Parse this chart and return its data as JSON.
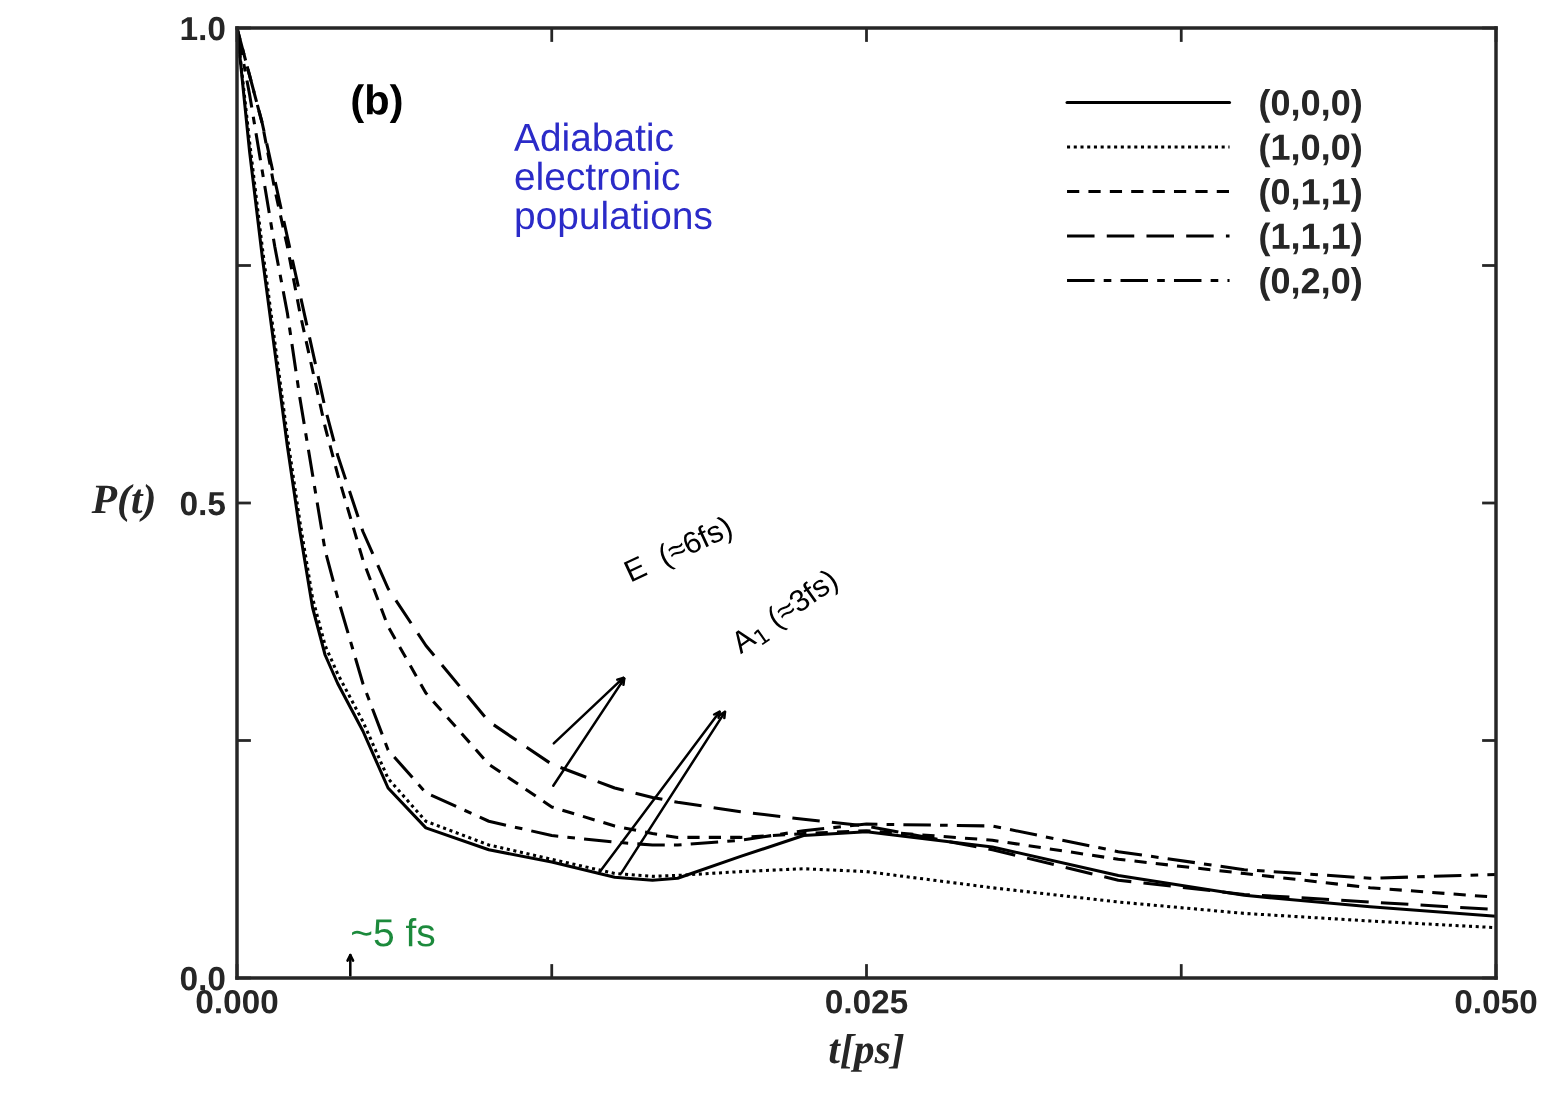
{
  "chart_data": {
    "type": "line",
    "xlabel": "t[ps]",
    "ylabel": "P(t)",
    "x": [
      0,
      0.0005,
      0.001,
      0.0015,
      0.002,
      0.0025,
      0.003,
      0.0035,
      0.004,
      0.005,
      0.006,
      0.0075,
      0.01,
      0.0125,
      0.015,
      0.0165,
      0.0175,
      0.02,
      0.0225,
      0.025,
      0.03,
      0.035,
      0.04,
      0.045,
      0.05
    ],
    "series": [
      {
        "name": "(0,0,0)",
        "color": "#000000",
        "line_style": "solid",
        "values": [
          1.0,
          0.87,
          0.76,
          0.66,
          0.56,
          0.47,
          0.39,
          0.34,
          0.31,
          0.26,
          0.2,
          0.158,
          0.135,
          0.122,
          0.106,
          0.103,
          0.105,
          0.128,
          0.15,
          0.154,
          0.138,
          0.108,
          0.087,
          0.075,
          0.065
        ]
      },
      {
        "name": "(1,0,0)",
        "color": "#000000",
        "line_style": "dotted",
        "values": [
          1.0,
          0.88,
          0.77,
          0.67,
          0.57,
          0.48,
          0.4,
          0.35,
          0.32,
          0.27,
          0.21,
          0.165,
          0.14,
          0.125,
          0.11,
          0.107,
          0.108,
          0.112,
          0.115,
          0.112,
          0.095,
          0.08,
          0.068,
          0.06,
          0.053
        ]
      },
      {
        "name": "(0,1,1)",
        "color": "#000000",
        "line_style": "dashed",
        "values": [
          1.0,
          0.95,
          0.9,
          0.83,
          0.77,
          0.7,
          0.64,
          0.58,
          0.53,
          0.44,
          0.37,
          0.3,
          0.225,
          0.18,
          0.16,
          0.152,
          0.148,
          0.148,
          0.152,
          0.155,
          0.145,
          0.125,
          0.11,
          0.095,
          0.085
        ]
      },
      {
        "name": "(1,1,1)",
        "color": "#000000",
        "line_style": "long dashed",
        "values": [
          1.0,
          0.95,
          0.9,
          0.84,
          0.78,
          0.72,
          0.66,
          0.6,
          0.55,
          0.47,
          0.41,
          0.35,
          0.27,
          0.225,
          0.2,
          0.19,
          0.185,
          0.175,
          0.167,
          0.16,
          0.135,
          0.103,
          0.088,
          0.08,
          0.072
        ]
      },
      {
        "name": "(0,2,0)",
        "color": "#000000",
        "line_style": "dashdot",
        "values": [
          1.0,
          0.93,
          0.85,
          0.77,
          0.7,
          0.61,
          0.53,
          0.45,
          0.4,
          0.31,
          0.24,
          0.195,
          0.165,
          0.15,
          0.143,
          0.14,
          0.14,
          0.145,
          0.155,
          0.162,
          0.16,
          0.133,
          0.114,
          0.105,
          0.109
        ]
      }
    ],
    "xlim": [
      0,
      0.05
    ],
    "ylim": [
      0,
      1.0
    ],
    "xticks": [
      {
        "value": 0,
        "label": "0.000"
      },
      {
        "value": 0.0125,
        "label": null
      },
      {
        "value": 0.025,
        "label": "0.025"
      },
      {
        "value": 0.0375,
        "label": null
      },
      {
        "value": 0.05,
        "label": "0.050"
      }
    ],
    "yticks": [
      {
        "value": 0,
        "label": "0.0"
      },
      {
        "value": 0.25,
        "label": null
      },
      {
        "value": 0.5,
        "label": "0.5"
      },
      {
        "value": 0.75,
        "label": null
      },
      {
        "value": 1.0,
        "label": "1.0"
      }
    ],
    "annotations": [
      "(b)",
      "Adiabatic\nelectronic\npopulations",
      "E  (≈6fs)",
      "A$_{1}$ (≈3fs)",
      "~5 fs"
    ],
    "legend": "top right",
    "grid": false
  }
}
